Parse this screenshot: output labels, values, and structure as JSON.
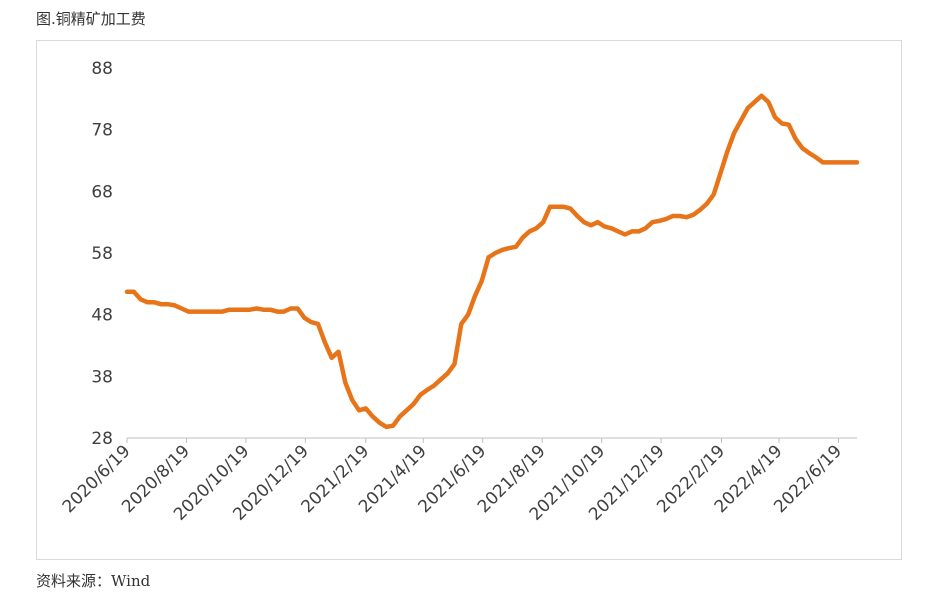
{
  "figure": {
    "title": "图.铜精矿加工费",
    "source": "资料来源：Wind"
  },
  "colors": {
    "series": "#E8741A",
    "axis": "#bfbfbf"
  },
  "chart_data": {
    "type": "line",
    "title": "",
    "xlabel": "",
    "ylabel": "",
    "ylim": [
      28,
      88
    ],
    "yticks": [
      28,
      38,
      48,
      58,
      68,
      78,
      88
    ],
    "xticks": [
      "2020/6/19",
      "2020/8/19",
      "2020/10/19",
      "2020/12/19",
      "2021/2/19",
      "2021/4/19",
      "2021/6/19",
      "2021/8/19",
      "2021/10/19",
      "2021/12/19",
      "2022/2/19",
      "2022/4/19",
      "2022/6/19"
    ],
    "grid": false,
    "legend": "none",
    "series": [
      {
        "name": "",
        "x": [
          "2020-06-19",
          "2020-06-26",
          "2020-07-03",
          "2020-07-10",
          "2020-07-17",
          "2020-07-24",
          "2020-07-31",
          "2020-08-07",
          "2020-08-14",
          "2020-08-21",
          "2020-08-28",
          "2020-09-04",
          "2020-09-11",
          "2020-09-18",
          "2020-09-25",
          "2020-10-02",
          "2020-10-09",
          "2020-10-16",
          "2020-10-23",
          "2020-10-30",
          "2020-11-06",
          "2020-11-13",
          "2020-11-20",
          "2020-11-27",
          "2020-12-04",
          "2020-12-11",
          "2020-12-18",
          "2020-12-25",
          "2021-01-01",
          "2021-01-08",
          "2021-01-15",
          "2021-01-22",
          "2021-01-29",
          "2021-02-05",
          "2021-02-12",
          "2021-02-19",
          "2021-02-26",
          "2021-03-05",
          "2021-03-12",
          "2021-03-19",
          "2021-03-26",
          "2021-04-02",
          "2021-04-09",
          "2021-04-16",
          "2021-04-23",
          "2021-04-30",
          "2021-05-07",
          "2021-05-14",
          "2021-05-21",
          "2021-05-28",
          "2021-06-04",
          "2021-06-11",
          "2021-06-18",
          "2021-06-25",
          "2021-07-02",
          "2021-07-09",
          "2021-07-16",
          "2021-07-23",
          "2021-07-30",
          "2021-08-06",
          "2021-08-13",
          "2021-08-20",
          "2021-08-27",
          "2021-09-03",
          "2021-09-10",
          "2021-09-17",
          "2021-09-24",
          "2021-10-01",
          "2021-10-08",
          "2021-10-15",
          "2021-10-22",
          "2021-10-29",
          "2021-11-05",
          "2021-11-12",
          "2021-11-19",
          "2021-11-26",
          "2021-12-03",
          "2021-12-10",
          "2021-12-17",
          "2021-12-24",
          "2021-12-31",
          "2022-01-07",
          "2022-01-14",
          "2022-01-21",
          "2022-01-28",
          "2022-02-04",
          "2022-02-11",
          "2022-02-18",
          "2022-02-25",
          "2022-03-04",
          "2022-03-11",
          "2022-03-18",
          "2022-03-25",
          "2022-04-01",
          "2022-04-08",
          "2022-04-15",
          "2022-04-22",
          "2022-04-29",
          "2022-05-06",
          "2022-05-13",
          "2022-05-20",
          "2022-05-27",
          "2022-06-03",
          "2022-06-10",
          "2022-06-17",
          "2022-06-24",
          "2022-07-01",
          "2022-07-08"
        ],
        "y": [
          51.7,
          51.7,
          50.5,
          50.0,
          50.0,
          49.7,
          49.7,
          49.5,
          49.0,
          48.5,
          48.5,
          48.5,
          48.5,
          48.5,
          48.5,
          48.8,
          48.8,
          48.8,
          48.8,
          49.0,
          48.8,
          48.8,
          48.5,
          48.5,
          49.0,
          49.0,
          47.5,
          46.8,
          46.5,
          43.5,
          41.0,
          42.0,
          37.0,
          34.2,
          32.5,
          32.8,
          31.5,
          30.5,
          29.8,
          30.0,
          31.5,
          32.5,
          33.5,
          35.0,
          35.8,
          36.5,
          37.5,
          38.5,
          40.0,
          46.5,
          48.0,
          51.0,
          53.5,
          57.3,
          58.0,
          58.5,
          58.8,
          59.0,
          60.5,
          61.5,
          62.0,
          63.0,
          65.5,
          65.5,
          65.5,
          65.2,
          64.0,
          63.0,
          62.5,
          63.0,
          62.3,
          62.0,
          61.5,
          61.0,
          61.5,
          61.5,
          62.0,
          63.0,
          63.2,
          63.5,
          64.0,
          64.0,
          63.8,
          64.2,
          65.0,
          66.0,
          67.5,
          71.0,
          74.5,
          77.5,
          79.5,
          81.5,
          82.5,
          83.5,
          82.5,
          80.0,
          79.0,
          78.8,
          76.5,
          75.0,
          74.2,
          73.5,
          72.7,
          72.7,
          72.7,
          72.7,
          72.7,
          72.7
        ]
      }
    ]
  }
}
